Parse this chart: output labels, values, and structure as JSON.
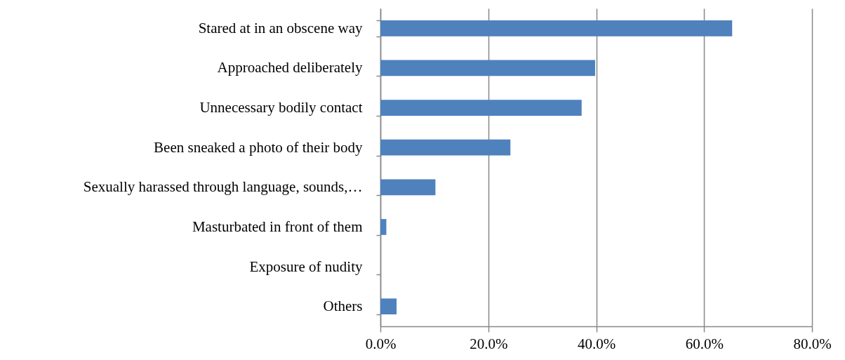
{
  "chart_data": {
    "type": "bar",
    "orientation": "horizontal",
    "categories": [
      "Stared at in an obscene way",
      "Approached deliberately",
      "Unnecessary bodily contact",
      "Been sneaked a photo of their body",
      "Sexually harassed through language, sounds,…",
      "Masturbated in front of them",
      "Exposure of nudity",
      "Others"
    ],
    "values": [
      65.2,
      39.8,
      37.3,
      24.1,
      10.2,
      1.1,
      0,
      3.0
    ],
    "color": "#4f81bd",
    "xlim": [
      0,
      80
    ],
    "xticks": [
      {
        "value": 0,
        "label": "0.0%"
      },
      {
        "value": 20,
        "label": "20.0%"
      },
      {
        "value": 40,
        "label": "40.0%"
      },
      {
        "value": 60,
        "label": "60.0%"
      },
      {
        "value": 80,
        "label": "80.0%"
      }
    ],
    "grid": "x"
  }
}
